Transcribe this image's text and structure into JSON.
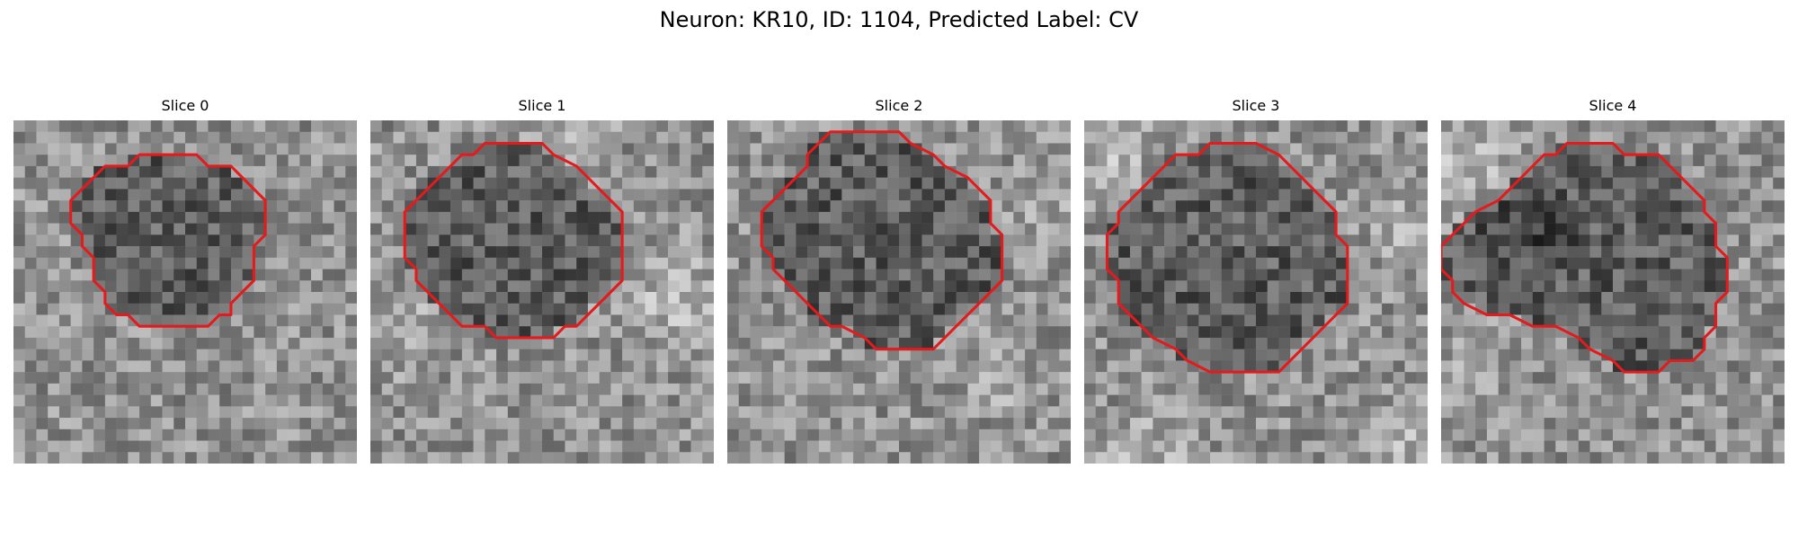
{
  "figure": {
    "title": "Neuron: KR10, ID: 1104, Predicted Label: CV",
    "contour_color": "#e41a1c",
    "panels": [
      {
        "title": "Slice 0",
        "image_style": "grayscale microscopy slice with a darker central soma region",
        "contour": [
          [
            12,
            3
          ],
          [
            16,
            3
          ],
          [
            17,
            4
          ],
          [
            19,
            4
          ],
          [
            20,
            5
          ],
          [
            21,
            6
          ],
          [
            22,
            7
          ],
          [
            22,
            10
          ],
          [
            21,
            11
          ],
          [
            21,
            14
          ],
          [
            20,
            15
          ],
          [
            19,
            16
          ],
          [
            19,
            17
          ],
          [
            18,
            17
          ],
          [
            17,
            18
          ],
          [
            11,
            18
          ],
          [
            10,
            17
          ],
          [
            9,
            17
          ],
          [
            8,
            16
          ],
          [
            8,
            15
          ],
          [
            7,
            14
          ],
          [
            7,
            12
          ],
          [
            6,
            11
          ],
          [
            6,
            10
          ],
          [
            5,
            9
          ],
          [
            5,
            7
          ],
          [
            6,
            6
          ],
          [
            7,
            5
          ],
          [
            8,
            4
          ],
          [
            10,
            4
          ],
          [
            11,
            3
          ]
        ]
      },
      {
        "title": "Slice 1",
        "image_style": "grayscale microscopy slice with bright surrounding regions",
        "contour": [
          [
            10,
            2
          ],
          [
            15,
            2
          ],
          [
            16,
            3
          ],
          [
            18,
            4
          ],
          [
            19,
            5
          ],
          [
            20,
            6
          ],
          [
            21,
            7
          ],
          [
            22,
            8
          ],
          [
            22,
            14
          ],
          [
            21,
            15
          ],
          [
            20,
            16
          ],
          [
            19,
            17
          ],
          [
            18,
            18
          ],
          [
            17,
            18
          ],
          [
            16,
            19
          ],
          [
            11,
            19
          ],
          [
            10,
            18
          ],
          [
            8,
            18
          ],
          [
            7,
            17
          ],
          [
            6,
            16
          ],
          [
            5,
            15
          ],
          [
            4,
            14
          ],
          [
            4,
            13
          ],
          [
            3,
            12
          ],
          [
            3,
            8
          ],
          [
            4,
            7
          ],
          [
            5,
            6
          ],
          [
            6,
            5
          ],
          [
            7,
            4
          ],
          [
            8,
            3
          ],
          [
            9,
            3
          ]
        ]
      },
      {
        "title": "Slice 2",
        "image_style": "grayscale microscopy slice with a larger dark soma",
        "contour": [
          [
            9,
            1
          ],
          [
            15,
            1
          ],
          [
            16,
            2
          ],
          [
            18,
            3
          ],
          [
            19,
            4
          ],
          [
            21,
            5
          ],
          [
            22,
            6
          ],
          [
            23,
            7
          ],
          [
            23,
            9
          ],
          [
            24,
            10
          ],
          [
            24,
            14
          ],
          [
            23,
            15
          ],
          [
            22,
            16
          ],
          [
            21,
            17
          ],
          [
            20,
            18
          ],
          [
            19,
            19
          ],
          [
            18,
            20
          ],
          [
            13,
            20
          ],
          [
            12,
            19
          ],
          [
            10,
            18
          ],
          [
            9,
            18
          ],
          [
            8,
            17
          ],
          [
            7,
            16
          ],
          [
            6,
            15
          ],
          [
            5,
            14
          ],
          [
            4,
            13
          ],
          [
            4,
            12
          ],
          [
            3,
            11
          ],
          [
            3,
            8
          ],
          [
            4,
            7
          ],
          [
            5,
            6
          ],
          [
            6,
            5
          ],
          [
            7,
            4
          ],
          [
            7,
            3
          ],
          [
            8,
            2
          ]
        ]
      },
      {
        "title": "Slice 3",
        "image_style": "grayscale microscopy slice with bright corners and a circular soma",
        "contour": [
          [
            12,
            2
          ],
          [
            15,
            2
          ],
          [
            17,
            3
          ],
          [
            18,
            4
          ],
          [
            19,
            5
          ],
          [
            20,
            6
          ],
          [
            21,
            7
          ],
          [
            22,
            8
          ],
          [
            22,
            10
          ],
          [
            23,
            11
          ],
          [
            23,
            16
          ],
          [
            22,
            17
          ],
          [
            21,
            18
          ],
          [
            20,
            19
          ],
          [
            19,
            20
          ],
          [
            18,
            21
          ],
          [
            17,
            22
          ],
          [
            11,
            22
          ],
          [
            9,
            21
          ],
          [
            8,
            20
          ],
          [
            6,
            19
          ],
          [
            5,
            18
          ],
          [
            4,
            17
          ],
          [
            3,
            16
          ],
          [
            3,
            14
          ],
          [
            2,
            13
          ],
          [
            2,
            10
          ],
          [
            3,
            9
          ],
          [
            3,
            8
          ],
          [
            4,
            7
          ],
          [
            5,
            6
          ],
          [
            6,
            5
          ],
          [
            7,
            4
          ],
          [
            8,
            3
          ],
          [
            10,
            3
          ],
          [
            11,
            2
          ]
        ]
      },
      {
        "title": "Slice 4",
        "image_style": "grayscale microscopy slice with an irregular soma outline",
        "contour": [
          [
            14,
            2
          ],
          [
            15,
            2
          ],
          [
            16,
            3
          ],
          [
            19,
            3
          ],
          [
            20,
            4
          ],
          [
            21,
            5
          ],
          [
            22,
            6
          ],
          [
            23,
            7
          ],
          [
            23,
            8
          ],
          [
            24,
            9
          ],
          [
            24,
            11
          ],
          [
            25,
            12
          ],
          [
            25,
            15
          ],
          [
            24,
            16
          ],
          [
            24,
            18
          ],
          [
            23,
            19
          ],
          [
            23,
            20
          ],
          [
            22,
            21
          ],
          [
            20,
            21
          ],
          [
            19,
            22
          ],
          [
            16,
            22
          ],
          [
            15,
            21
          ],
          [
            13,
            20
          ],
          [
            12,
            19
          ],
          [
            10,
            18
          ],
          [
            8,
            18
          ],
          [
            6,
            17
          ],
          [
            4,
            17
          ],
          [
            2,
            16
          ],
          [
            1,
            15
          ],
          [
            1,
            14
          ],
          [
            0,
            13
          ],
          [
            0,
            11
          ],
          [
            1,
            10
          ],
          [
            2,
            9
          ],
          [
            3,
            8
          ],
          [
            5,
            7
          ],
          [
            6,
            6
          ],
          [
            7,
            5
          ],
          [
            8,
            4
          ],
          [
            9,
            3
          ],
          [
            10,
            3
          ],
          [
            11,
            2
          ]
        ]
      }
    ]
  }
}
